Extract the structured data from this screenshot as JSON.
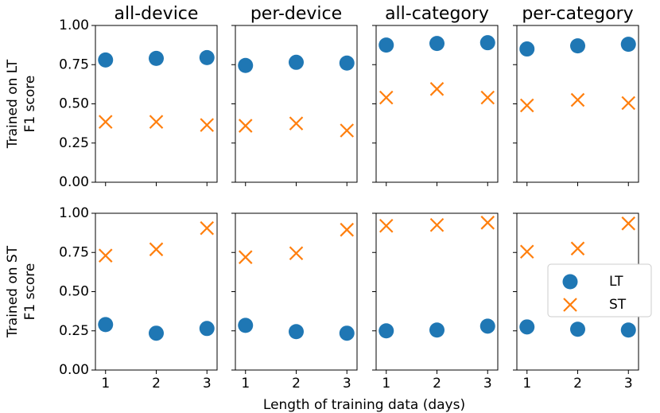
{
  "colors": {
    "LT": "#1f77b4",
    "ST": "#ff7f0e"
  },
  "chart_data": {
    "type": "scatter",
    "grid": false,
    "legend_placement": "right (bottom row, last panel)",
    "xlabel": "Length of training data (days)",
    "x_ticks": [
      1,
      2,
      3
    ],
    "y_ticks": [
      "0.00",
      "0.25",
      "0.50",
      "0.75",
      "1.00"
    ],
    "xlim": [
      0.8,
      3.2
    ],
    "ylim": [
      0,
      1
    ],
    "column_titles": [
      "all-device",
      "per-device",
      "all-category",
      "per-category"
    ],
    "row_labels": [
      [
        "Trained on LT",
        "F1 score"
      ],
      [
        "Trained on ST",
        "F1 score"
      ]
    ],
    "legend": [
      {
        "name": "LT",
        "marker": "circle"
      },
      {
        "name": "ST",
        "marker": "x"
      }
    ],
    "rows": [
      {
        "panels": [
          {
            "title": "all-device",
            "series": [
              {
                "name": "LT",
                "x": [
                  1,
                  2,
                  3
                ],
                "y": [
                  0.78,
                  0.79,
                  0.795
                ]
              },
              {
                "name": "ST",
                "x": [
                  1,
                  2,
                  3
                ],
                "y": [
                  0.385,
                  0.385,
                  0.365
                ]
              }
            ]
          },
          {
            "title": "per-device",
            "series": [
              {
                "name": "LT",
                "x": [
                  1,
                  2,
                  3
                ],
                "y": [
                  0.745,
                  0.765,
                  0.76
                ]
              },
              {
                "name": "ST",
                "x": [
                  1,
                  2,
                  3
                ],
                "y": [
                  0.36,
                  0.375,
                  0.33
                ]
              }
            ]
          },
          {
            "title": "all-category",
            "series": [
              {
                "name": "LT",
                "x": [
                  1,
                  2,
                  3
                ],
                "y": [
                  0.875,
                  0.885,
                  0.89
                ]
              },
              {
                "name": "ST",
                "x": [
                  1,
                  2,
                  3
                ],
                "y": [
                  0.54,
                  0.595,
                  0.54
                ]
              }
            ]
          },
          {
            "title": "per-category",
            "series": [
              {
                "name": "LT",
                "x": [
                  1,
                  2,
                  3
                ],
                "y": [
                  0.85,
                  0.87,
                  0.88
                ]
              },
              {
                "name": "ST",
                "x": [
                  1,
                  2,
                  3
                ],
                "y": [
                  0.49,
                  0.525,
                  0.505
                ]
              }
            ]
          }
        ]
      },
      {
        "panels": [
          {
            "title": "all-device",
            "series": [
              {
                "name": "LT",
                "x": [
                  1,
                  2,
                  3
                ],
                "y": [
                  0.29,
                  0.235,
                  0.265
                ]
              },
              {
                "name": "ST",
                "x": [
                  1,
                  2,
                  3
                ],
                "y": [
                  0.73,
                  0.77,
                  0.905
                ]
              }
            ]
          },
          {
            "title": "per-device",
            "series": [
              {
                "name": "LT",
                "x": [
                  1,
                  2,
                  3
                ],
                "y": [
                  0.285,
                  0.245,
                  0.235
                ]
              },
              {
                "name": "ST",
                "x": [
                  1,
                  2,
                  3
                ],
                "y": [
                  0.72,
                  0.745,
                  0.895
                ]
              }
            ]
          },
          {
            "title": "all-category",
            "series": [
              {
                "name": "LT",
                "x": [
                  1,
                  2,
                  3
                ],
                "y": [
                  0.25,
                  0.255,
                  0.28
                ]
              },
              {
                "name": "ST",
                "x": [
                  1,
                  2,
                  3
                ],
                "y": [
                  0.92,
                  0.925,
                  0.94
                ]
              }
            ]
          },
          {
            "title": "per-category",
            "series": [
              {
                "name": "LT",
                "x": [
                  1,
                  2,
                  3
                ],
                "y": [
                  0.275,
                  0.26,
                  0.255
                ]
              },
              {
                "name": "ST",
                "x": [
                  1,
                  2,
                  3
                ],
                "y": [
                  0.755,
                  0.775,
                  0.935
                ]
              }
            ]
          }
        ]
      }
    ]
  }
}
